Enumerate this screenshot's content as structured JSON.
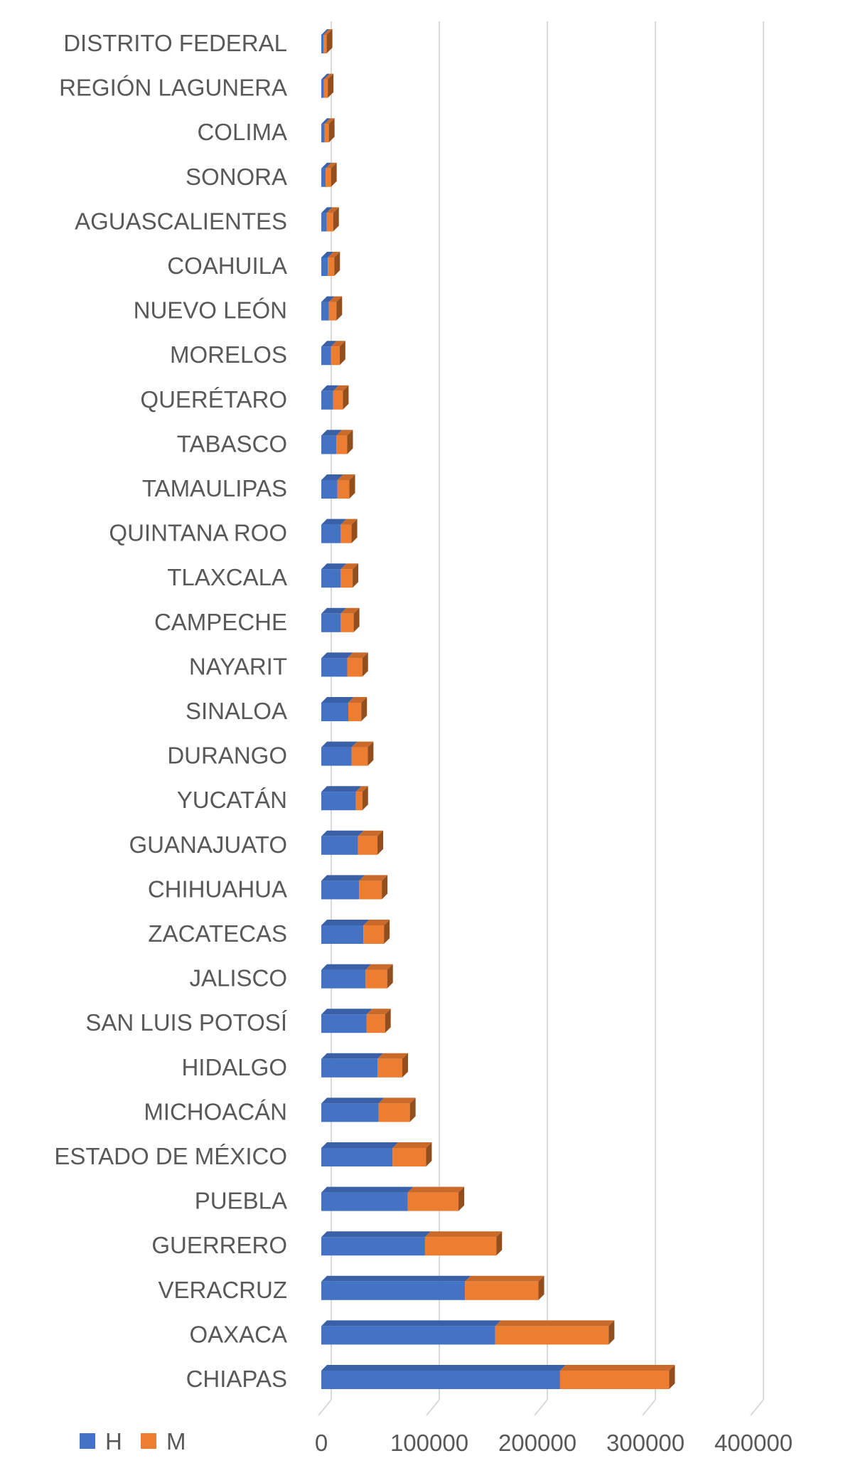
{
  "chart_data": {
    "type": "bar",
    "orientation": "horizontal",
    "stacked": true,
    "style": "3d",
    "title": "",
    "xlabel": "",
    "ylabel": "",
    "xlim": [
      0,
      400000
    ],
    "x_ticks": [
      "0",
      "100000",
      "200000",
      "300000",
      "400000"
    ],
    "x_tick_values": [
      0,
      100000,
      200000,
      300000,
      400000
    ],
    "grid": true,
    "legend_position": "bottom-left",
    "categories": [
      "DISTRITO FEDERAL",
      "REGIÓN LAGUNERA",
      "COLIMA",
      "SONORA",
      "AGUASCALIENTES",
      "COAHUILA",
      "NUEVO LEÓN",
      "MORELOS",
      "QUERÉTARO",
      "TABASCO",
      "TAMAULIPAS",
      "QUINTANA ROO",
      "TLAXCALA",
      "CAMPECHE",
      "NAYARIT",
      "SINALOA",
      "DURANGO",
      "YUCATÁN",
      "GUANAJUATO",
      "CHIHUAHUA",
      "ZACATECAS",
      "JALISCO",
      "SAN LUIS POTOSÍ",
      "HIDALGO",
      "MICHOACÁN",
      "ESTADO DE MÉXICO",
      "PUEBLA",
      "GUERRERO",
      "VERACRUZ",
      "OAXACA",
      "CHIAPAS"
    ],
    "series": [
      {
        "name": "H",
        "color": "#4472C4",
        "values": [
          2000,
          2500,
          3000,
          4000,
          5000,
          6000,
          7000,
          9000,
          11000,
          14000,
          15000,
          18000,
          18000,
          18000,
          24000,
          25000,
          28000,
          32000,
          34000,
          35000,
          39000,
          41000,
          42000,
          52000,
          53000,
          66000,
          80000,
          96000,
          133000,
          161000,
          221000
        ]
      },
      {
        "name": "M",
        "color": "#ED7D31",
        "values": [
          3000,
          3500,
          4000,
          5000,
          6000,
          6000,
          7000,
          8000,
          9000,
          10000,
          11000,
          10000,
          11000,
          12000,
          14000,
          12000,
          15000,
          6000,
          18000,
          21000,
          19000,
          20000,
          17000,
          23000,
          29000,
          31000,
          47000,
          66000,
          68000,
          105000,
          101000
        ]
      }
    ]
  }
}
